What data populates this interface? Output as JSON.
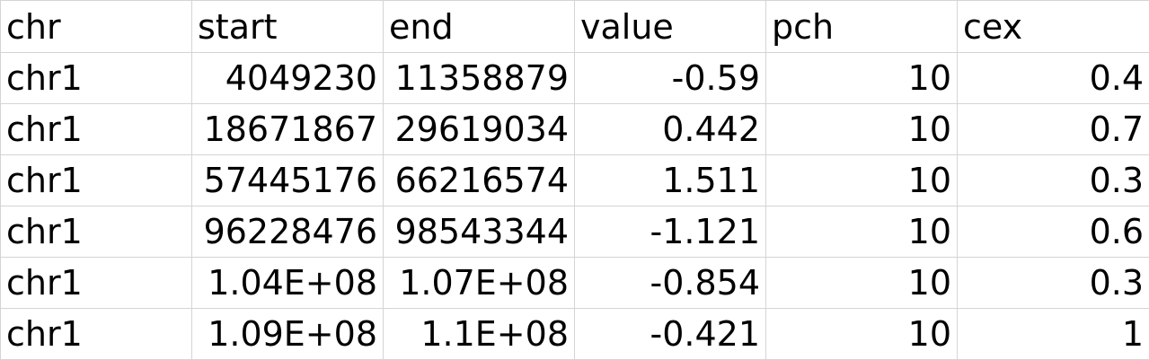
{
  "sheet": {
    "columns": [
      "chr",
      "start",
      "end",
      "value",
      "pch",
      "cex"
    ],
    "rows": [
      [
        "chr1",
        "4049230",
        "11358879",
        "-0.59",
        "10",
        "0.4"
      ],
      [
        "chr1",
        "18671867",
        "29619034",
        "0.442",
        "10",
        "0.7"
      ],
      [
        "chr1",
        "57445176",
        "66216574",
        "1.511",
        "10",
        "0.3"
      ],
      [
        "chr1",
        "96228476",
        "98543344",
        "-1.121",
        "10",
        "0.6"
      ],
      [
        "chr1",
        "1.04E+08",
        "1.07E+08",
        "-0.854",
        "10",
        "0.3"
      ],
      [
        "chr1",
        "1.09E+08",
        "1.1E+08",
        "-0.421",
        "10",
        "1"
      ]
    ]
  },
  "colors": {
    "gridline": "#d4d4d4",
    "text": "#000000",
    "background": "#ffffff"
  }
}
